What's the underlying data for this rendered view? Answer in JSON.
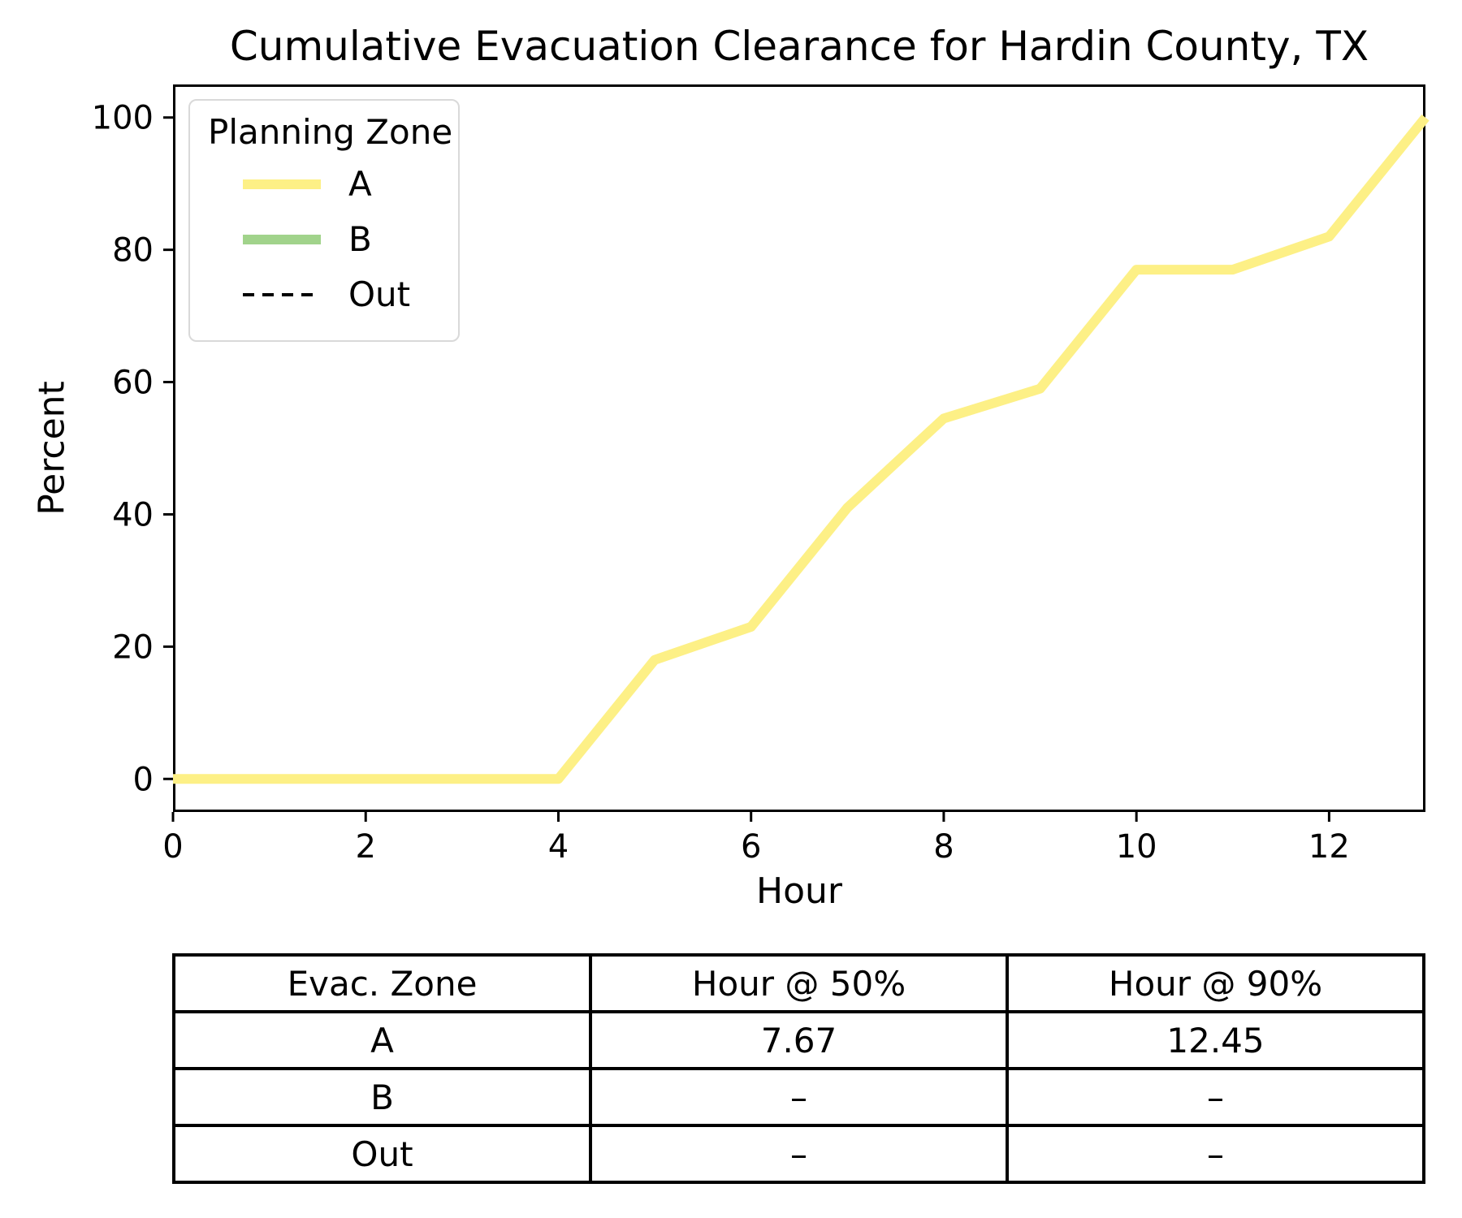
{
  "figure": {
    "title": "Cumulative Evacuation Clearance for Hardin County, TX"
  },
  "colors": {
    "zone_a": "#fdf086",
    "zone_b": "#a1d38b",
    "out": "#000000",
    "axis": "#000000",
    "legend_border": "#d9d9d9"
  },
  "chart_data": {
    "type": "line",
    "title": "Cumulative Evacuation Clearance for Hardin County, TX",
    "xlabel": "Hour",
    "ylabel": "Percent",
    "xlim": [
      0,
      13
    ],
    "ylim": [
      -5,
      105
    ],
    "x_ticks": [
      0,
      2,
      4,
      6,
      8,
      10,
      12
    ],
    "y_ticks": [
      0,
      20,
      40,
      60,
      80,
      100
    ],
    "grid": false,
    "legend_title": "Planning Zone",
    "legend_position": "upper left",
    "x": [
      0,
      1,
      2,
      3,
      4,
      5,
      6,
      7,
      8,
      9,
      10,
      11,
      12,
      13
    ],
    "series": [
      {
        "name": "A",
        "color": "#fdf086",
        "style": "solid",
        "values": [
          0,
          0,
          0,
          0,
          0,
          18,
          23,
          41,
          54.5,
          59,
          77,
          77,
          82,
          100
        ]
      },
      {
        "name": "B",
        "color": "#a1d38b",
        "style": "solid",
        "values": []
      },
      {
        "name": "Out",
        "color": "#000000",
        "style": "dashed",
        "values": []
      }
    ]
  },
  "table": {
    "headers": [
      "Evac. Zone",
      "Hour @ 50%",
      "Hour @ 90%"
    ],
    "rows": [
      [
        "A",
        "7.67",
        "12.45"
      ],
      [
        "B",
        "–",
        "–"
      ],
      [
        "Out",
        "–",
        "–"
      ]
    ]
  }
}
